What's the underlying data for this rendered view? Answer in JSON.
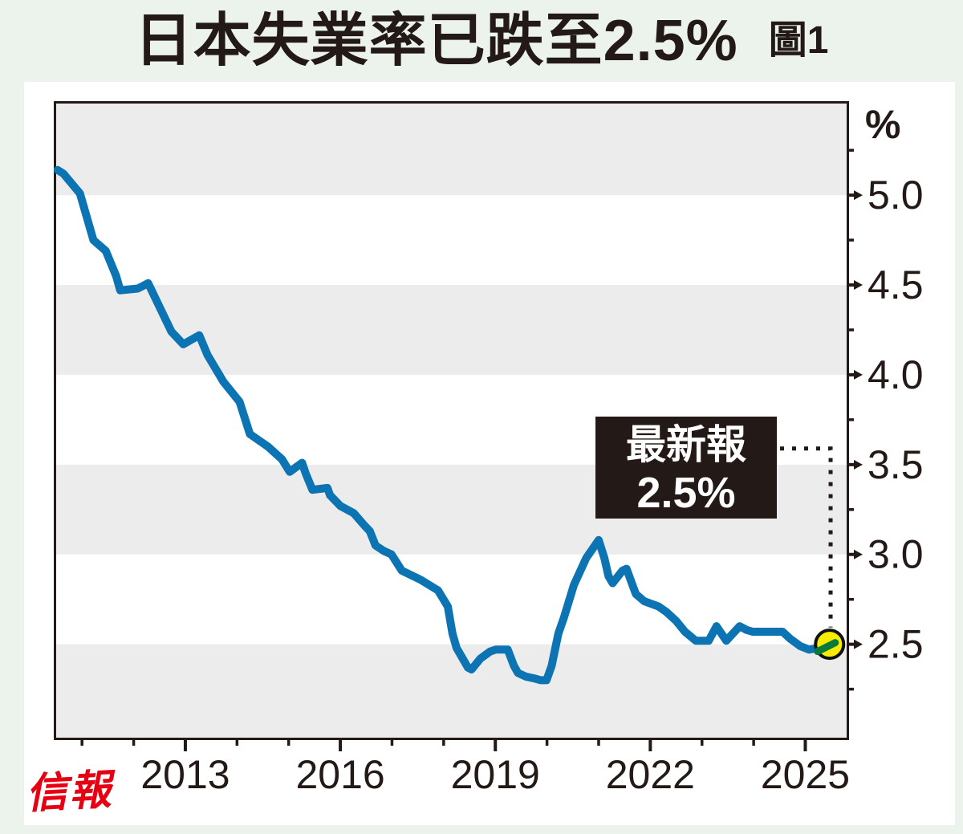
{
  "header": {
    "title": "日本失業率已跌至2.5%",
    "figure_label": "圖1"
  },
  "footer": {
    "logo_text": "信報"
  },
  "callout": {
    "line1": "最新報",
    "line2": "2.5%"
  },
  "colors": {
    "page_background": "#ecf2ec",
    "panel_background": "#ffffff",
    "band_gray": "#ececec",
    "axis_ink": "#231916",
    "line_blue": "#0d74b4",
    "marker_yellow": "#f7ec00",
    "highlight_green": "#0a7a3c",
    "logo_red": "#e60012",
    "callout_background": "#231916",
    "callout_text": "#ffffff"
  },
  "chart_data": {
    "type": "line",
    "title": "日本失業率已跌至2.5%",
    "xlabel": "",
    "ylabel": "%",
    "xlim": [
      2010.5,
      2025.8
    ],
    "ylim": [
      1.98,
      5.51
    ],
    "grid": "striped-bands",
    "legend_position": "none",
    "bands": [
      [
        5.51,
        5.0
      ],
      [
        4.5,
        4.0
      ],
      [
        3.5,
        3.0
      ],
      [
        2.5,
        1.98
      ]
    ],
    "x_major_ticks": {
      "values": [
        2013,
        2016,
        2019,
        2022,
        2025
      ],
      "labels": [
        "2013",
        "2016",
        "2019",
        "2022",
        "2025"
      ]
    },
    "x_minor_ticks": [
      2011,
      2012,
      2014,
      2015,
      2017,
      2018,
      2020,
      2021,
      2023,
      2024
    ],
    "y_major_ticks": {
      "values": [
        5.0,
        4.5,
        4.0,
        3.5,
        3.0,
        2.5
      ],
      "labels": [
        "5.0",
        "4.5",
        "4.0",
        "3.5",
        "3.0",
        "2.5"
      ]
    },
    "y_minor_ticks": [
      5.25,
      4.75,
      4.25,
      3.75,
      3.25,
      2.75,
      2.25
    ],
    "series": [
      {
        "name": "日本失業率",
        "color": "#0d74b4",
        "points": [
          [
            2010.53,
            5.14
          ],
          [
            2010.64,
            5.12
          ],
          [
            2010.96,
            5.01
          ],
          [
            2011.22,
            4.75
          ],
          [
            2011.46,
            4.69
          ],
          [
            2011.66,
            4.55
          ],
          [
            2011.74,
            4.47
          ],
          [
            2012.08,
            4.48
          ],
          [
            2012.28,
            4.51
          ],
          [
            2012.73,
            4.24
          ],
          [
            2012.96,
            4.17
          ],
          [
            2013.27,
            4.22
          ],
          [
            2013.43,
            4.11
          ],
          [
            2013.74,
            3.96
          ],
          [
            2014.05,
            3.85
          ],
          [
            2014.25,
            3.67
          ],
          [
            2014.6,
            3.6
          ],
          [
            2014.87,
            3.53
          ],
          [
            2015.02,
            3.46
          ],
          [
            2015.26,
            3.51
          ],
          [
            2015.33,
            3.45
          ],
          [
            2015.46,
            3.36
          ],
          [
            2015.75,
            3.37
          ],
          [
            2015.8,
            3.33
          ],
          [
            2016.0,
            3.27
          ],
          [
            2016.26,
            3.23
          ],
          [
            2016.47,
            3.16
          ],
          [
            2016.57,
            3.13
          ],
          [
            2016.68,
            3.05
          ],
          [
            2016.84,
            3.02
          ],
          [
            2016.99,
            3.0
          ],
          [
            2017.19,
            2.91
          ],
          [
            2017.55,
            2.86
          ],
          [
            2017.89,
            2.8
          ],
          [
            2018.08,
            2.71
          ],
          [
            2018.17,
            2.56
          ],
          [
            2018.25,
            2.48
          ],
          [
            2018.47,
            2.37
          ],
          [
            2018.54,
            2.36
          ],
          [
            2018.71,
            2.42
          ],
          [
            2018.9,
            2.46
          ],
          [
            2019.01,
            2.47
          ],
          [
            2019.24,
            2.47
          ],
          [
            2019.36,
            2.38
          ],
          [
            2019.44,
            2.34
          ],
          [
            2019.59,
            2.32
          ],
          [
            2019.75,
            2.31
          ],
          [
            2019.88,
            2.3
          ],
          [
            2019.99,
            2.3
          ],
          [
            2020.09,
            2.38
          ],
          [
            2020.22,
            2.56
          ],
          [
            2020.33,
            2.65
          ],
          [
            2020.52,
            2.83
          ],
          [
            2020.76,
            2.98
          ],
          [
            2021.0,
            3.08
          ],
          [
            2021.11,
            2.98
          ],
          [
            2021.19,
            2.88
          ],
          [
            2021.27,
            2.84
          ],
          [
            2021.46,
            2.91
          ],
          [
            2021.54,
            2.92
          ],
          [
            2021.72,
            2.78
          ],
          [
            2021.88,
            2.74
          ],
          [
            2022.16,
            2.71
          ],
          [
            2022.31,
            2.68
          ],
          [
            2022.5,
            2.63
          ],
          [
            2022.67,
            2.57
          ],
          [
            2022.88,
            2.52
          ],
          [
            2023.13,
            2.52
          ],
          [
            2023.28,
            2.6
          ],
          [
            2023.47,
            2.52
          ],
          [
            2023.73,
            2.6
          ],
          [
            2023.86,
            2.58
          ],
          [
            2023.98,
            2.57
          ],
          [
            2024.56,
            2.57
          ],
          [
            2024.71,
            2.53
          ],
          [
            2024.9,
            2.49
          ],
          [
            2025.07,
            2.47
          ],
          [
            2025.26,
            2.48
          ],
          [
            2025.47,
            2.5
          ]
        ]
      }
    ],
    "latest": {
      "year": 2025.47,
      "value": 2.5
    },
    "connector_elbow": {
      "year": 2025.49,
      "value": 3.59
    }
  }
}
